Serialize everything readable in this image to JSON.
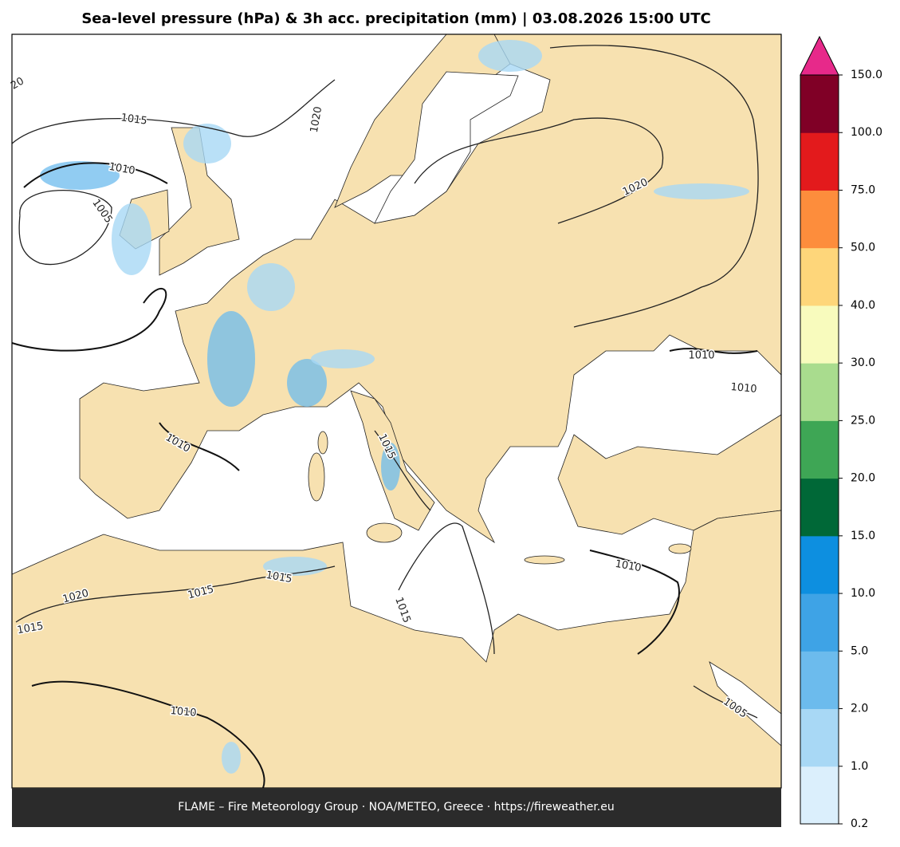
{
  "header": {
    "title": "Sea-level pressure (hPa) & 3h acc. precipitation (mm)  |  03.08.2026 15:00 UTC"
  },
  "footer": {
    "text": "FLAME – Fire Meteorology Group · NOA/METEO, Greece · https://fireweather.eu"
  },
  "isobar_labels": [
    "20",
    "1015",
    "1010",
    "1005",
    "1020",
    "1020",
    "1010",
    "1010",
    "1010",
    "1015",
    "1015",
    "1015",
    "1020",
    "1015",
    "1010",
    "1015",
    "1010",
    "1005"
  ],
  "colorbar": {
    "ticks": [
      0.2,
      {
        "value": 1,
        "label": "1.0"
      },
      {
        "value": 2,
        "label": "2.0"
      },
      {
        "value": 5,
        "label": "5.0"
      },
      {
        "value": 10,
        "label": "10.0"
      },
      {
        "value": 15,
        "label": "15.0"
      },
      {
        "value": 20,
        "label": "20.0"
      },
      {
        "value": 25,
        "label": "25.0"
      },
      {
        "value": 30,
        "label": "30.0"
      },
      {
        "value": 40,
        "label": "40.0"
      },
      {
        "value": 50,
        "label": "50.0"
      },
      {
        "value": 75,
        "label": "75.0"
      },
      {
        "value": 100,
        "label": "100.0"
      },
      {
        "value": 150,
        "label": "150.0"
      }
    ],
    "colors": [
      "#dbeffc",
      "#a8d8f5",
      "#6cbbed",
      "#3ea3e6",
      "#0d8fe0",
      "#006837",
      "#3ea655",
      "#a9dc8e",
      "#f8fbbd",
      "#fed67a",
      "#fd8d3c",
      "#e31a1c",
      "#800026"
    ],
    "extend_color": "#e7298a"
  }
}
